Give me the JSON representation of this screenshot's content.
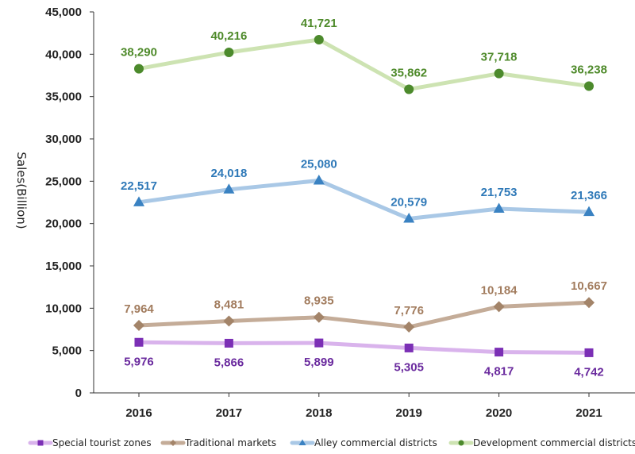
{
  "chart_data": {
    "type": "line",
    "title": "",
    "xlabel": "",
    "ylabel": "Sales(Billion)",
    "ylim": [
      0,
      45000
    ],
    "yticks": [
      "0",
      "5,000",
      "10,000",
      "15,000",
      "20,000",
      "25,000",
      "30,000",
      "35,000",
      "40,000",
      "45,000"
    ],
    "categories": [
      "2016",
      "2017",
      "2018",
      "2019",
      "2020",
      "2021"
    ],
    "grid": false,
    "legend_position": "bottom",
    "series": [
      {
        "name": "Special tourist zones",
        "values": [
          5976,
          5866,
          5899,
          5305,
          4817,
          4742
        ],
        "labels": [
          "5,976",
          "5,866",
          "5,899",
          "5,305",
          "4,817",
          "4,742"
        ],
        "line_color": "#d9b3ec",
        "marker_color": "#7b2fb5",
        "label_color": "#6a2a9e",
        "marker": "square",
        "label_position": "below"
      },
      {
        "name": "Traditional markets",
        "values": [
          7964,
          8481,
          8935,
          7776,
          10184,
          10667
        ],
        "labels": [
          "7,964",
          "8,481",
          "8,935",
          "7,776",
          "10,184",
          "10,667"
        ],
        "line_color": "#c4ac98",
        "marker_color": "#a38469",
        "label_color": "#a27c5e",
        "marker": "diamond",
        "label_position": "above"
      },
      {
        "name": "Alley commercial districts",
        "values": [
          22517,
          24018,
          25080,
          20579,
          21753,
          21366
        ],
        "labels": [
          "22,517",
          "24,018",
          "25,080",
          "20,579",
          "21,753",
          "21,366"
        ],
        "line_color": "#a9c8e6",
        "marker_color": "#3a82c2",
        "label_color": "#2f79b8",
        "marker": "triangle",
        "label_position": "above"
      },
      {
        "name": "Development commercial districts",
        "values": [
          38290,
          40216,
          41721,
          35862,
          37718,
          36238
        ],
        "labels": [
          "38,290",
          "40,216",
          "41,721",
          "35,862",
          "37,718",
          "36,238"
        ],
        "line_color": "#cde3b2",
        "marker_color": "#4c8a2c",
        "label_color": "#4e8a2a",
        "marker": "circle",
        "label_position": "above"
      }
    ]
  }
}
